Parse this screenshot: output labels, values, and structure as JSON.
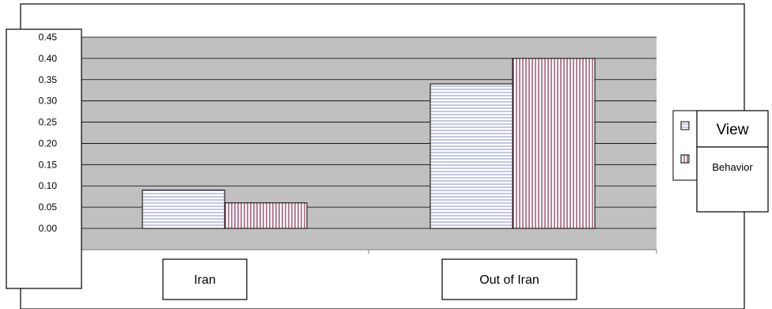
{
  "chart_data": {
    "type": "bar",
    "categories": [
      "Iran",
      "Out of Iran"
    ],
    "series": [
      {
        "name": "View",
        "values": [
          0.09,
          0.34
        ],
        "pattern": "horizontal-lines",
        "color": "#8a8fd0"
      },
      {
        "name": "Behavior",
        "values": [
          0.06,
          0.4
        ],
        "pattern": "vertical-lines",
        "color": "#8a2a52"
      }
    ],
    "ylim": [
      0,
      0.45
    ],
    "yticks": [
      "0.00",
      "0.05",
      "0.10",
      "0.15",
      "0.20",
      "0.25",
      "0.30",
      "0.35",
      "0.40",
      "0.45"
    ],
    "grid": true,
    "plot_background": "#c0c0c0",
    "legend_position": "right"
  }
}
